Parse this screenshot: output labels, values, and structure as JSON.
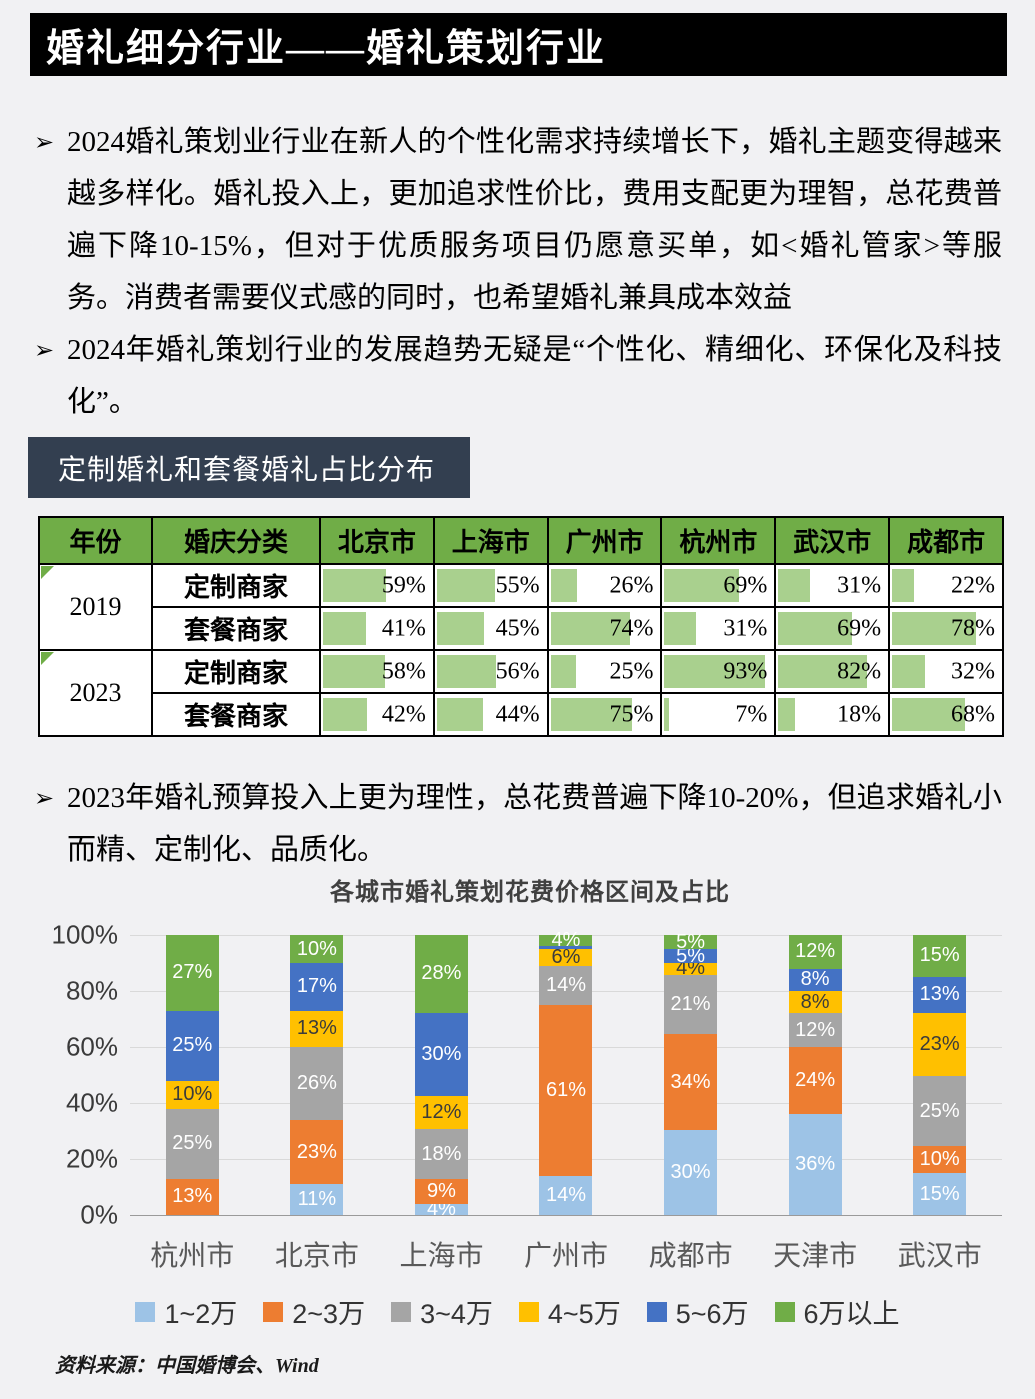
{
  "page": {
    "title": "婚礼细分行业——婚礼策划行业",
    "source_note": "资料来源：中国婚博会、Wind"
  },
  "ui": {
    "bullet_marker": "➢"
  },
  "bullets": [
    "2024婚礼策划业行业在新人的个性化需求持续增长下，婚礼主题变得越来越多样化。婚礼投入上，更加追求性价比，费用支配更为理智，总花费普遍下降10-15%，但对于优质服务项目仍愿意买单，如<婚礼管家>等服务。消费者需要仪式感的同时，也希望婚礼兼具成本效益",
    "2024年婚礼策划行业的发展趋势无疑是“个性化、精细化、环保化及科技化”。",
    "2023年婚礼预算投入上更为理性，总花费普遍下降10-20%，但追求婚礼小而精、定制化、品质化。"
  ],
  "table_section": {
    "header": "定制婚礼和套餐婚礼占比分布",
    "header_bg": "#70ad47",
    "bar_color": "#a9d08e",
    "columns": [
      "年份",
      "婚庆分类",
      "北京市",
      "上海市",
      "广州市",
      "杭州市",
      "武汉市",
      "成都市"
    ],
    "rows": [
      {
        "year": "2019",
        "category": "定制商家",
        "values": [
          59,
          55,
          26,
          69,
          31,
          22
        ]
      },
      {
        "year": "",
        "category": "套餐商家",
        "values": [
          41,
          45,
          74,
          31,
          69,
          78
        ]
      },
      {
        "year": "2023",
        "category": "定制商家",
        "values": [
          58,
          56,
          25,
          93,
          82,
          32
        ]
      },
      {
        "year": "",
        "category": "套餐商家",
        "values": [
          42,
          44,
          75,
          7,
          18,
          68
        ]
      }
    ]
  },
  "chart_data": {
    "type": "bar",
    "stacked": true,
    "title": "各城市婚礼策划花费价格区间及占比",
    "categories": [
      "杭州市",
      "北京市",
      "上海市",
      "广州市",
      "成都市",
      "天津市",
      "武汉市"
    ],
    "series": [
      {
        "name": "1~2万",
        "color": "#9dc3e6",
        "label_color": "#ffffff",
        "values": [
          0,
          11,
          4,
          14,
          30,
          36,
          15
        ]
      },
      {
        "name": "2~3万",
        "color": "#ed7d31",
        "label_color": "#ffffff",
        "values": [
          13,
          23,
          9,
          61,
          34,
          24,
          10
        ]
      },
      {
        "name": "3~4万",
        "color": "#a5a5a5",
        "label_color": "#ffffff",
        "values": [
          25,
          26,
          18,
          14,
          21,
          12,
          25
        ]
      },
      {
        "name": "4~5万",
        "color": "#ffc000",
        "label_color": "#3b3b3b",
        "values": [
          10,
          13,
          12,
          6,
          4,
          8,
          23
        ]
      },
      {
        "name": "5~6万",
        "color": "#4472c4",
        "label_color": "#ffffff",
        "values": [
          25,
          17,
          30,
          1,
          5,
          8,
          13
        ]
      },
      {
        "name": "6万以上",
        "color": "#70ad47",
        "label_color": "#ffffff",
        "values": [
          27,
          10,
          28,
          4,
          5,
          12,
          15
        ]
      }
    ],
    "y_ticks": [
      "100%",
      "80%",
      "60%",
      "40%",
      "20%",
      "0%"
    ],
    "ylim": [
      0,
      100
    ],
    "grid": true,
    "legend_position": "bottom"
  }
}
